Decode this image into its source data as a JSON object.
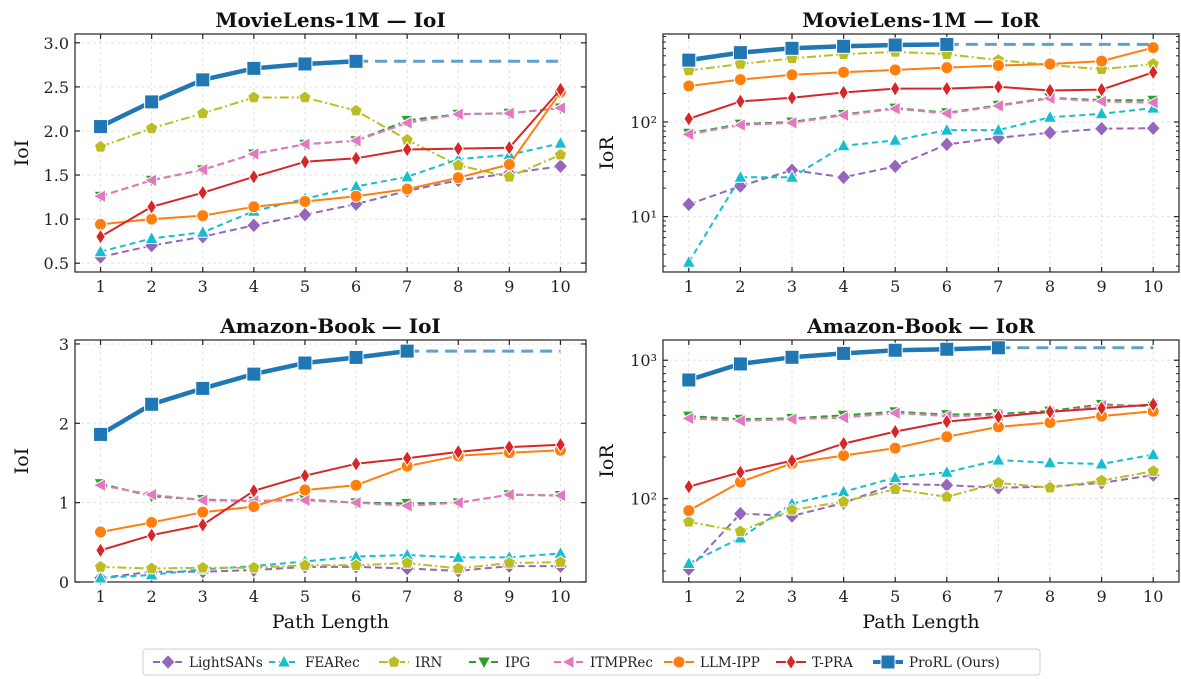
{
  "chart_data": [
    {
      "type": "line",
      "title": "MovieLens-1M — IoI",
      "xlabel": "",
      "ylabel": "IoI",
      "yscale": "linear",
      "ylim": [
        0.4,
        3.1
      ],
      "yticks": [
        0.5,
        1.0,
        1.5,
        2.0,
        2.5,
        3.0
      ],
      "ytick_labels": [
        "0.5",
        "1.0",
        "1.5",
        "2.0",
        "2.5",
        "3.0"
      ],
      "x": [
        1,
        2,
        3,
        4,
        5,
        6,
        7,
        8,
        9,
        10
      ],
      "grid": true,
      "series": [
        {
          "name": "LightSANs",
          "values": [
            0.57,
            0.7,
            0.8,
            0.93,
            1.05,
            1.17,
            1.32,
            1.44,
            1.52,
            1.6
          ]
        },
        {
          "name": "FEARec",
          "values": [
            0.63,
            0.78,
            0.85,
            1.09,
            1.23,
            1.37,
            1.48,
            1.68,
            1.73,
            1.86
          ]
        },
        {
          "name": "IRN",
          "values": [
            1.82,
            2.03,
            2.2,
            2.38,
            2.38,
            2.23,
            1.9,
            1.61,
            1.48,
            1.73
          ]
        },
        {
          "name": "IPG",
          "values": [
            1.26,
            1.44,
            1.56,
            1.74,
            1.85,
            1.89,
            2.12,
            2.19,
            2.2,
            2.26
          ]
        },
        {
          "name": "ITMPRec",
          "values": [
            1.26,
            1.44,
            1.56,
            1.74,
            1.85,
            1.89,
            2.09,
            2.19,
            2.2,
            2.26
          ]
        },
        {
          "name": "LLM-IPP",
          "values": [
            0.94,
            1.0,
            1.04,
            1.14,
            1.2,
            1.26,
            1.34,
            1.47,
            1.62,
            2.44
          ]
        },
        {
          "name": "T-PRA",
          "values": [
            0.8,
            1.14,
            1.3,
            1.48,
            1.65,
            1.69,
            1.79,
            1.8,
            1.81,
            2.47
          ]
        },
        {
          "name": "ProRL (Ours)",
          "values": [
            2.05,
            2.33,
            2.58,
            2.71,
            2.76,
            2.79,
            2.79,
            2.79,
            2.79,
            2.79
          ],
          "solid_until": 6
        }
      ]
    },
    {
      "type": "line",
      "title": "MovieLens-1M — IoR",
      "xlabel": "",
      "ylabel": "IoR",
      "yscale": "log",
      "ylim": [
        2.6,
        850
      ],
      "yticks": [
        10,
        100
      ],
      "ytick_labels": [
        "10¹",
        "10²"
      ],
      "x": [
        1,
        2,
        3,
        4,
        5,
        6,
        7,
        8,
        9,
        10
      ],
      "grid": true,
      "series": [
        {
          "name": "LightSANs",
          "values": [
            13.5,
            21,
            31,
            26,
            34,
            58,
            68,
            77,
            85,
            86
          ]
        },
        {
          "name": "FEARec",
          "values": [
            3.3,
            26,
            26,
            56,
            64,
            82,
            82,
            112,
            122,
            140
          ]
        },
        {
          "name": "IRN",
          "values": [
            350,
            410,
            470,
            520,
            550,
            520,
            450,
            400,
            360,
            410
          ]
        },
        {
          "name": "IPG",
          "values": [
            76,
            95,
            100,
            120,
            140,
            125,
            150,
            180,
            170,
            170
          ]
        },
        {
          "name": "ITMPRec",
          "values": [
            74,
            93,
            98,
            118,
            138,
            123,
            148,
            178,
            165,
            160
          ]
        },
        {
          "name": "LLM-IPP",
          "values": [
            240,
            280,
            315,
            335,
            355,
            375,
            395,
            410,
            440,
            610
          ]
        },
        {
          "name": "T-PRA",
          "values": [
            108,
            165,
            180,
            205,
            225,
            225,
            235,
            215,
            220,
            335
          ]
        },
        {
          "name": "ProRL (Ours)",
          "values": [
            450,
            540,
            600,
            630,
            650,
            660,
            660,
            660,
            660,
            660
          ],
          "solid_until": 6
        }
      ]
    },
    {
      "type": "line",
      "title": "Amazon-Book — IoI",
      "xlabel": "Path Length",
      "ylabel": "IoI",
      "yscale": "linear",
      "ylim": [
        0,
        3.05
      ],
      "yticks": [
        0,
        1,
        2,
        3
      ],
      "ytick_labels": [
        "0",
        "1",
        "2",
        "3"
      ],
      "x": [
        1,
        2,
        3,
        4,
        5,
        6,
        7,
        8,
        9,
        10
      ],
      "grid": true,
      "series": [
        {
          "name": "LightSANs",
          "values": [
            0.05,
            0.13,
            0.13,
            0.15,
            0.19,
            0.19,
            0.17,
            0.14,
            0.2,
            0.2
          ]
        },
        {
          "name": "FEARec",
          "values": [
            0.05,
            0.09,
            0.16,
            0.2,
            0.26,
            0.32,
            0.34,
            0.31,
            0.31,
            0.36
          ]
        },
        {
          "name": "IRN",
          "values": [
            0.19,
            0.17,
            0.18,
            0.18,
            0.21,
            0.21,
            0.24,
            0.17,
            0.24,
            0.25
          ]
        },
        {
          "name": "IPG",
          "values": [
            1.24,
            1.08,
            1.04,
            1.02,
            1.04,
            1.0,
            0.99,
            1.0,
            1.1,
            1.09
          ]
        },
        {
          "name": "ITMPRec",
          "values": [
            1.22,
            1.1,
            1.03,
            1.02,
            1.03,
            1.0,
            0.96,
            1.0,
            1.1,
            1.09
          ]
        },
        {
          "name": "LLM-IPP",
          "values": [
            0.63,
            0.75,
            0.88,
            0.95,
            1.16,
            1.22,
            1.46,
            1.59,
            1.63,
            1.66
          ]
        },
        {
          "name": "T-PRA",
          "values": [
            0.4,
            0.59,
            0.72,
            1.15,
            1.34,
            1.49,
            1.56,
            1.64,
            1.7,
            1.73
          ]
        },
        {
          "name": "ProRL (Ours)",
          "values": [
            1.86,
            2.24,
            2.44,
            2.62,
            2.76,
            2.83,
            2.91,
            2.91,
            2.91,
            2.91
          ],
          "solid_until": 7
        }
      ]
    },
    {
      "type": "line",
      "title": "Amazon-Book — IoR",
      "xlabel": "Path Length",
      "ylabel": "IoR",
      "yscale": "log",
      "ylim": [
        25,
        1400
      ],
      "yticks": [
        100,
        1000
      ],
      "ytick_labels": [
        "10²",
        "10³"
      ],
      "x": [
        1,
        2,
        3,
        4,
        5,
        6,
        7,
        8,
        9,
        10
      ],
      "grid": true,
      "series": [
        {
          "name": "LightSANs",
          "values": [
            31,
            78,
            75,
            93,
            128,
            125,
            120,
            122,
            130,
            148
          ]
        },
        {
          "name": "FEARec",
          "values": [
            34,
            52,
            92,
            112,
            142,
            155,
            190,
            182,
            178,
            208
          ]
        },
        {
          "name": "IRN",
          "values": [
            68,
            58,
            83,
            95,
            117,
            103,
            130,
            120,
            135,
            158
          ]
        },
        {
          "name": "IPG",
          "values": [
            395,
            375,
            380,
            400,
            425,
            405,
            410,
            430,
            480,
            465
          ]
        },
        {
          "name": "ITMPRec",
          "values": [
            380,
            365,
            375,
            385,
            415,
            395,
            400,
            420,
            470,
            470
          ]
        },
        {
          "name": "LLM-IPP",
          "values": [
            82,
            132,
            180,
            205,
            232,
            280,
            330,
            355,
            395,
            428
          ]
        },
        {
          "name": "T-PRA",
          "values": [
            122,
            155,
            188,
            250,
            305,
            360,
            390,
            425,
            450,
            480
          ]
        },
        {
          "name": "ProRL (Ours)",
          "values": [
            720,
            940,
            1050,
            1120,
            1180,
            1200,
            1230,
            1230,
            1230,
            1230
          ],
          "solid_until": 7
        }
      ]
    }
  ],
  "styles": {
    "LightSANs": {
      "color": "#9467bd",
      "marker": "diamond",
      "dash": "7,4",
      "lw": 2
    },
    "FEARec": {
      "color": "#17becf",
      "marker": "triangle-up",
      "dash": "6,4",
      "lw": 2
    },
    "IRN": {
      "color": "#bcbd22",
      "marker": "pentagon",
      "dash": "9,3,2,3",
      "lw": 2
    },
    "IPG": {
      "color": "#2ca02c",
      "marker": "triangle-down",
      "dash": "7,4",
      "lw": 2
    },
    "ITMPRec": {
      "color": "#e377c2",
      "marker": "triangle-left",
      "dash": "7,4",
      "lw": 2
    },
    "LLM-IPP": {
      "color": "#ff7f0e",
      "marker": "circle",
      "dash": "",
      "lw": 2
    },
    "T-PRA": {
      "color": "#d62728",
      "marker": "diamond-thin",
      "dash": "",
      "lw": 2
    },
    "ProRL (Ours)": {
      "color": "#1f77b4",
      "marker": "square",
      "dash": "",
      "lw": 4.5
    }
  },
  "legend": {
    "position": "bottom-center",
    "entries": [
      "LightSANs",
      "FEARec",
      "IRN",
      "IPG",
      "ITMPRec",
      "LLM-IPP",
      "T-PRA",
      "ProRL (Ours)"
    ]
  }
}
